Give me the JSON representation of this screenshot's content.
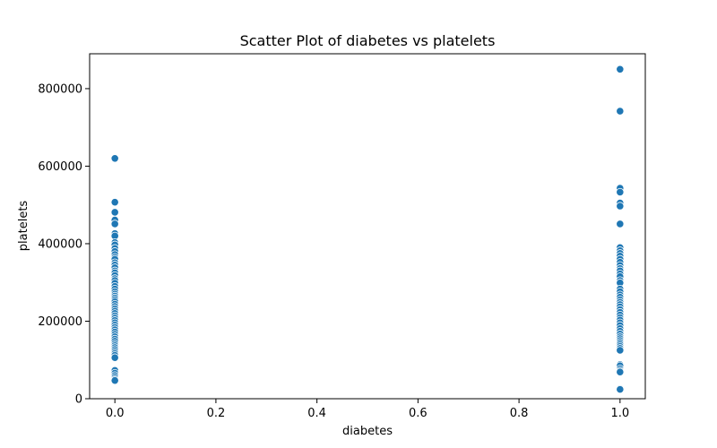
{
  "chart_data": {
    "type": "scatter",
    "title": "Scatter Plot of diabetes vs platelets",
    "xlabel": "diabetes",
    "ylabel": "platelets",
    "xlim": [
      -0.05,
      1.05
    ],
    "ylim": [
      0,
      890000
    ],
    "xticks": [
      0.0,
      0.2,
      0.4,
      0.6,
      0.8,
      1.0
    ],
    "xtick_labels": [
      "0.0",
      "0.2",
      "0.4",
      "0.6",
      "0.8",
      "1.0"
    ],
    "yticks": [
      0,
      200000,
      400000,
      600000,
      800000
    ],
    "ytick_labels": [
      "0",
      "200000",
      "400000",
      "600000",
      "800000"
    ],
    "grid": false,
    "color": "#1f77b4",
    "series": [
      {
        "x": [
          0,
          0,
          0,
          0,
          0,
          0,
          0,
          0,
          0,
          0,
          0,
          0,
          0,
          0,
          0,
          0,
          0,
          0,
          0,
          0,
          0,
          0,
          0,
          0,
          0,
          0,
          0,
          0,
          0,
          0,
          0,
          0,
          0,
          0,
          0,
          0,
          0,
          0,
          0,
          0,
          0,
          0,
          0,
          0,
          0,
          0,
          0,
          0,
          0,
          0,
          0,
          0,
          0,
          0,
          0,
          0,
          0,
          0,
          0,
          0,
          0,
          0
        ],
        "y": [
          620000,
          507000,
          481000,
          461000,
          451000,
          426000,
          420000,
          403000,
          397000,
          388000,
          380000,
          372000,
          365000,
          360000,
          351000,
          345000,
          338000,
          330000,
          325000,
          318000,
          310000,
          305000,
          298000,
          290000,
          283000,
          276000,
          270000,
          265000,
          260000,
          255000,
          250000,
          244000,
          238000,
          232000,
          226000,
          220000,
          214000,
          208000,
          202000,
          196000,
          190000,
          184000,
          178000,
          172000,
          166000,
          160000,
          154000,
          148000,
          142000,
          137000,
          132000,
          127000,
          122000,
          117000,
          112000,
          106000,
          73000,
          66000,
          60000,
          55000,
          50000,
          47000
        ]
      },
      {
        "x": [
          1,
          1,
          1,
          1,
          1,
          1,
          1,
          1,
          1,
          1,
          1,
          1,
          1,
          1,
          1,
          1,
          1,
          1,
          1,
          1,
          1,
          1,
          1,
          1,
          1,
          1,
          1,
          1,
          1,
          1,
          1,
          1,
          1,
          1,
          1,
          1,
          1,
          1,
          1,
          1,
          1,
          1,
          1,
          1,
          1,
          1,
          1,
          1,
          1,
          1,
          1,
          1,
          1
        ],
        "y": [
          850000,
          742000,
          543000,
          533000,
          505000,
          497000,
          451000,
          390000,
          382000,
          375000,
          368000,
          360000,
          352000,
          344000,
          336000,
          330000,
          322000,
          315000,
          305000,
          299000,
          283000,
          276000,
          268000,
          262000,
          255000,
          249000,
          243000,
          237000,
          230000,
          223000,
          216000,
          209000,
          203000,
          196000,
          189000,
          181000,
          174000,
          167000,
          160000,
          155000,
          150000,
          145000,
          140000,
          135000,
          130000,
          125000,
          88000,
          85000,
          77000,
          72000,
          69000,
          26000,
          24000
        ]
      }
    ]
  }
}
